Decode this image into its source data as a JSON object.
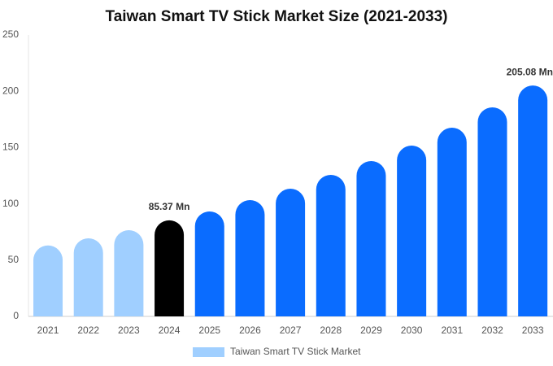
{
  "chart_data": {
    "type": "bar",
    "title": "Taiwan Smart TV Stick Market Size (2021-2033)",
    "categories": [
      "2021",
      "2022",
      "2023",
      "2024",
      "2025",
      "2026",
      "2027",
      "2028",
      "2029",
      "2030",
      "2031",
      "2032",
      "2033"
    ],
    "series": [
      {
        "name": "Taiwan Smart TV Stick Market",
        "color": "#a0cfff",
        "values": [
          63,
          69.4,
          76.6,
          85.37,
          93.2,
          103.3,
          113.4,
          125.7,
          138,
          151.7,
          167.6,
          185.7,
          205.08
        ],
        "value_labels": [
          null,
          null,
          null,
          "85.37 Mn",
          null,
          null,
          null,
          null,
          null,
          null,
          null,
          null,
          "205.08 Mn"
        ],
        "bar_colors": [
          "#a0cfff",
          "#a0cfff",
          "#a0cfff",
          "#000000",
          "#0a6cff",
          "#0a6cff",
          "#0a6cff",
          "#0a6cff",
          "#0a6cff",
          "#0a6cff",
          "#0a6cff",
          "#0a6cff",
          "#0a6cff"
        ]
      }
    ],
    "ylim": [
      0,
      250
    ],
    "yticks": [
      0,
      50,
      100,
      150,
      200,
      250
    ],
    "grid": false,
    "legend": "bottom"
  }
}
